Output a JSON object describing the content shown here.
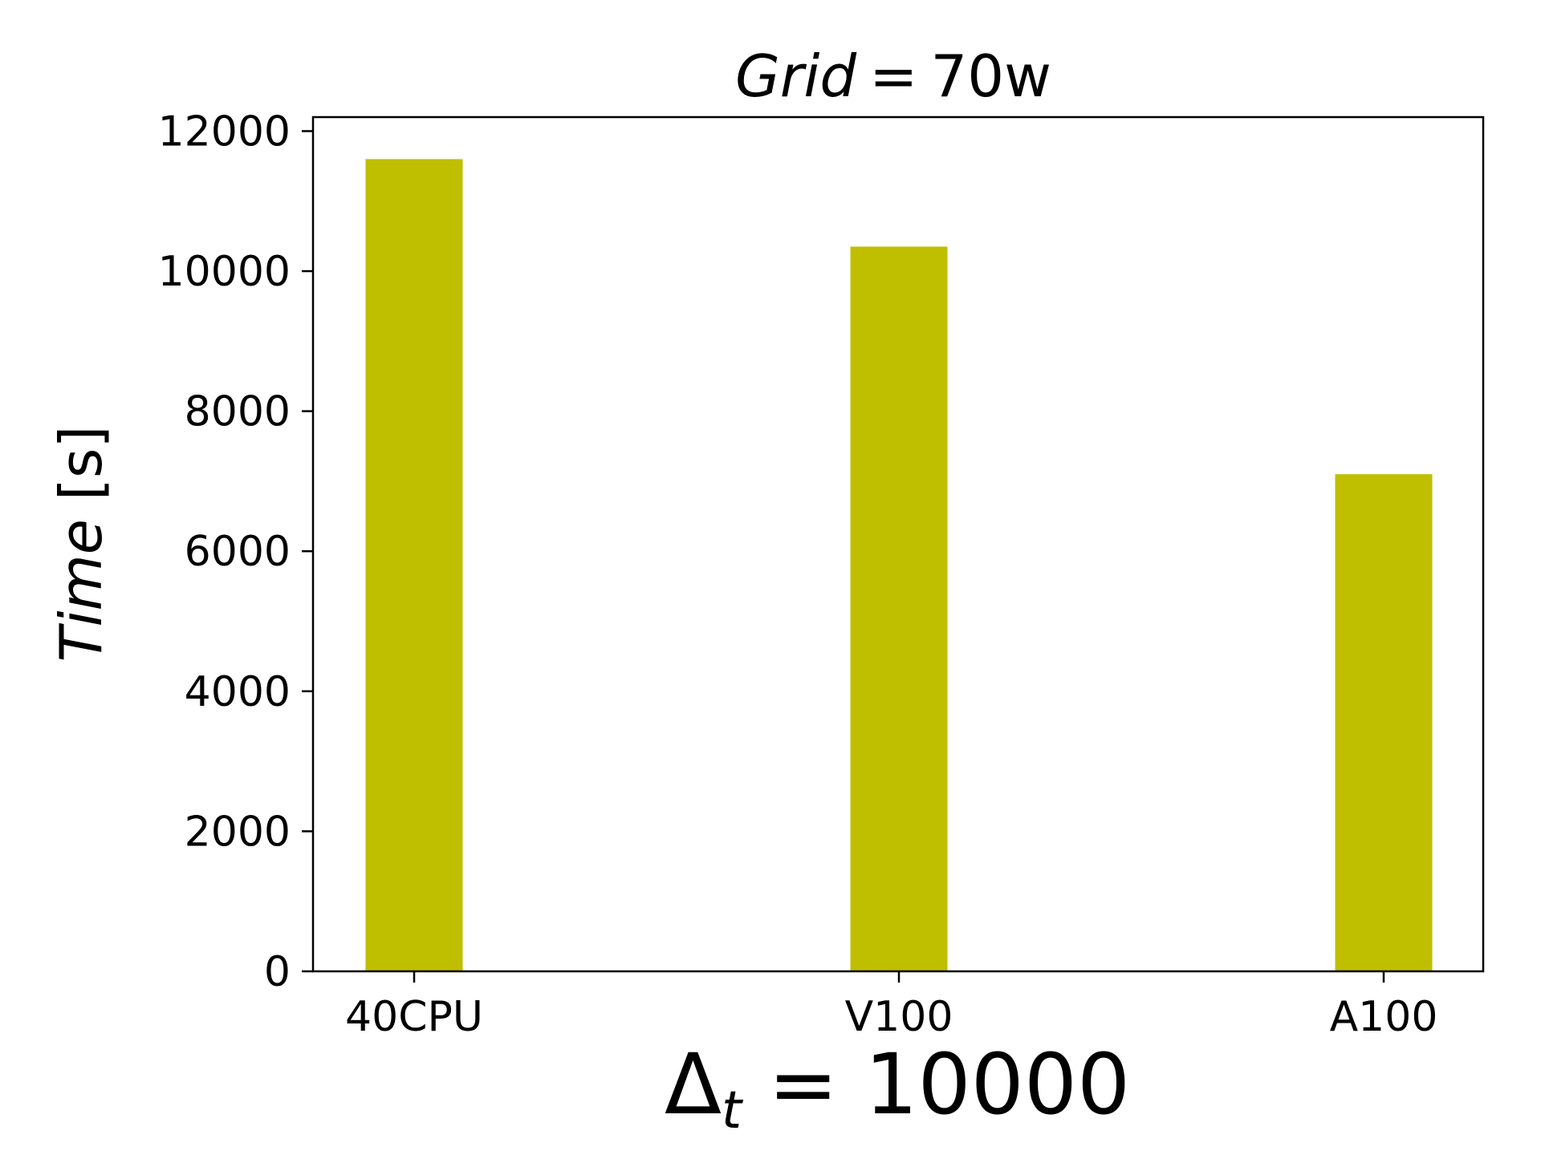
{
  "chart_data": {
    "type": "bar",
    "title": "Grid = 70w",
    "title_parts": {
      "lhs": "Grid",
      "eq": "=",
      "rhs": "70w"
    },
    "xlabel": "Δt = 10000",
    "xlabel_parts": {
      "base": "Δ",
      "sub": "t",
      "rest": " = 10000"
    },
    "ylabel": "Time [s]",
    "ylabel_parts": {
      "var": "Time",
      "rest": " [s]"
    },
    "categories": [
      "40CPU",
      "V100",
      "A100"
    ],
    "values": [
      11600,
      10350,
      7100
    ],
    "ylim": [
      0,
      12200
    ],
    "yticks": [
      0,
      2000,
      4000,
      6000,
      8000,
      10000,
      12000
    ],
    "grid": false,
    "bar_color": "#bfbf00"
  }
}
